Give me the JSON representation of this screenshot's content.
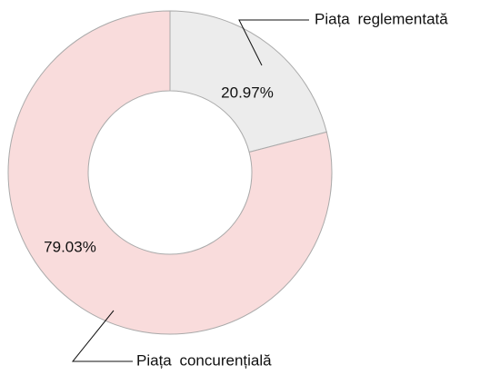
{
  "chart_data": {
    "type": "pie",
    "donut": true,
    "categories": [
      "Piața reglementată",
      "Piața concurențială"
    ],
    "values": [
      20.97,
      79.03
    ],
    "value_labels": [
      "20.97%",
      "79.03%"
    ],
    "colors": [
      "#ececec",
      "#f9dcdc"
    ]
  }
}
